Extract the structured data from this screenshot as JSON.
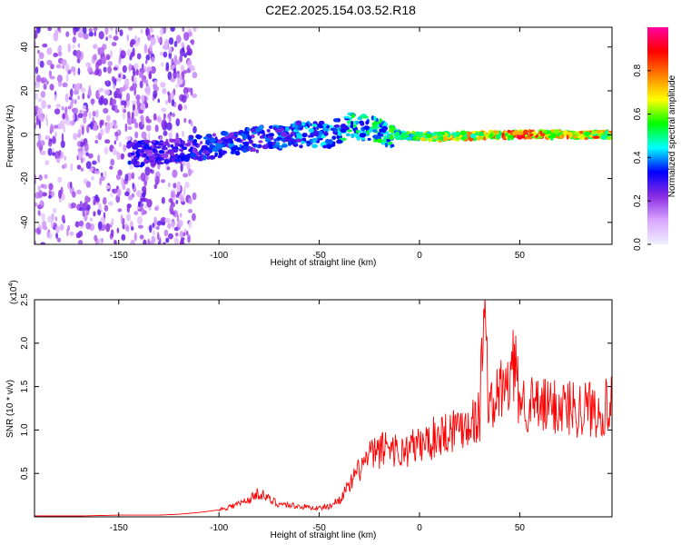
{
  "title": "C2E2.2025.154.03.52.R18",
  "chart_data": [
    {
      "type": "heatmap",
      "xlabel": "Height of straight line (km)",
      "ylabel": "Frequency (Hz)",
      "xlim": [
        -192,
        96
      ],
      "ylim": [
        -50,
        49
      ],
      "xticks": [
        -150,
        -100,
        -50,
        0,
        50
      ],
      "yticks": [
        -40,
        -20,
        0,
        20,
        40
      ],
      "colorbar": {
        "label": "Normalized spectral amplitude",
        "range": [
          0.0,
          1.0
        ],
        "ticks": [
          0.0,
          0.2,
          0.4,
          0.6,
          0.8
        ],
        "colors": [
          "#f0f0ff",
          "#d9a6ff",
          "#8a2be2",
          "#0000ff",
          "#00ffff",
          "#00ff00",
          "#ffff00",
          "#ff8000",
          "#ff0000",
          "#ff00a0"
        ]
      },
      "ridge": {
        "description_points_x": [
          -140,
          -120,
          -100,
          -80,
          -60,
          -45,
          -35,
          -25,
          -15,
          0,
          50,
          96
        ],
        "center_freq": [
          -9,
          -7,
          -5,
          -2,
          0,
          0,
          4,
          3,
          0,
          -1,
          0,
          0
        ],
        "peak_amplitude": [
          0.35,
          0.35,
          0.4,
          0.4,
          0.45,
          0.5,
          0.55,
          0.55,
          0.6,
          0.7,
          0.95,
          0.85
        ]
      }
    },
    {
      "type": "line",
      "xlabel": "Height of straight line (km)",
      "ylabel": "SNR (10 * v/v)",
      "y_multiplier": "(x10",
      "y_exponent": "4",
      "xlim": [
        -192,
        96
      ],
      "ylim": [
        0,
        2.5
      ],
      "xticks": [
        -150,
        -100,
        -50,
        0,
        50
      ],
      "yticks": [
        0.5,
        1.0,
        1.5,
        2.0,
        2.5
      ],
      "color": "#ff0000",
      "series": [
        {
          "x": [
            -192,
            -170,
            -150,
            -130,
            -120,
            -110,
            -100,
            -90,
            -85,
            -80,
            -75,
            -70,
            -60,
            -50,
            -45,
            -40,
            -35,
            -30,
            -25,
            -20,
            -15,
            -10,
            -5,
            0,
            5,
            10,
            15,
            20,
            25,
            30,
            32,
            35,
            40,
            45,
            47,
            50,
            55,
            60,
            70,
            80,
            90,
            96
          ],
          "values": [
            0.01,
            0.01,
            0.02,
            0.02,
            0.03,
            0.05,
            0.08,
            0.15,
            0.2,
            0.28,
            0.2,
            0.15,
            0.12,
            0.1,
            0.12,
            0.2,
            0.35,
            0.55,
            0.7,
            0.75,
            0.85,
            0.72,
            0.8,
            0.82,
            0.88,
            0.95,
            1.0,
            1.05,
            1.1,
            1.15,
            2.45,
            1.2,
            1.45,
            1.5,
            1.78,
            1.35,
            1.3,
            1.25,
            1.28,
            1.25,
            1.25,
            1.27
          ]
        }
      ]
    }
  ]
}
